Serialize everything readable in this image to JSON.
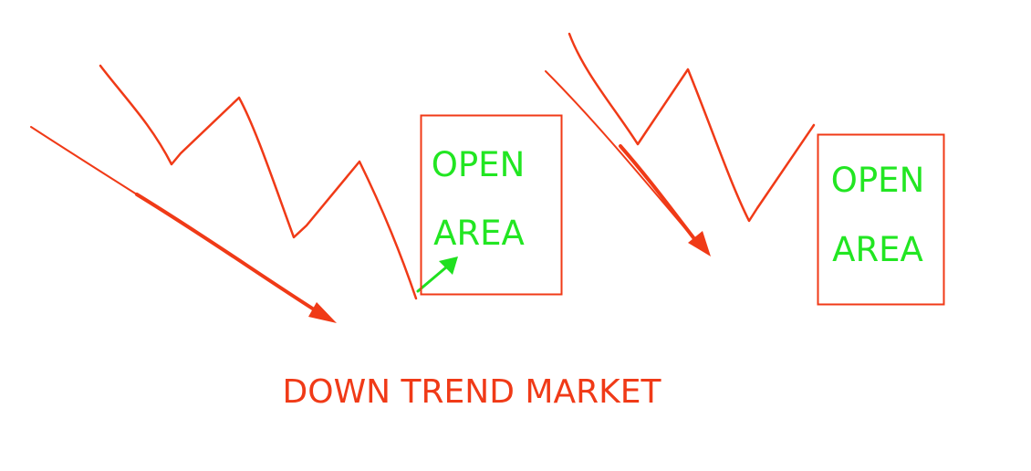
{
  "colors": {
    "trend": "#f03a17",
    "open_area_text": "#22e622",
    "entry_arrow": "#1fe01f",
    "background": "#ffffff"
  },
  "diagram": {
    "caption": "DOWN TREND MARKET",
    "open_area_left": {
      "line1": "OPEN",
      "line2": "AREA"
    },
    "open_area_right": {
      "line1": "OPEN",
      "line2": "AREA"
    }
  }
}
